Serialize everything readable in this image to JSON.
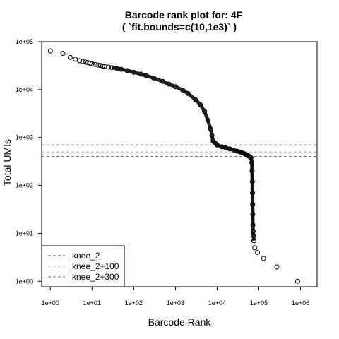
{
  "chart_data": {
    "type": "scatter",
    "title": "Barcode rank plot for: 4F",
    "subtitle": "( `fit.bounds=c(10,1e3)` )",
    "xlabel": "Barcode Rank",
    "ylabel": "Total UMIs",
    "x_scale": "log",
    "y_scale": "log",
    "xlim": [
      0.62,
      2500000
    ],
    "ylim": [
      0.77,
      100000
    ],
    "x_ticks": [
      1,
      10,
      100,
      1000,
      10000,
      100000,
      1000000
    ],
    "x_tick_labels": [
      "1e+00",
      "1e+01",
      "1e+02",
      "1e+03",
      "1e+04",
      "1e+05",
      "1e+06"
    ],
    "y_ticks": [
      1,
      10,
      100,
      1000,
      10000,
      100000
    ],
    "y_tick_labels": [
      "1e+00",
      "1e+01",
      "1e+02",
      "1e+03",
      "1e+04",
      "1e+05"
    ],
    "grid": false,
    "legend_position": "bottom-left",
    "series": [
      {
        "kind": "points",
        "color": "#000000",
        "points": [
          [
            1,
            64000
          ],
          [
            2,
            57000
          ],
          [
            3,
            47000
          ],
          [
            4,
            43000
          ],
          [
            5,
            40000
          ],
          [
            6,
            38500
          ],
          [
            7,
            37500
          ],
          [
            8,
            36500
          ],
          [
            9,
            35500
          ],
          [
            10,
            34500
          ],
          [
            12,
            33500
          ],
          [
            14,
            32500
          ],
          [
            16,
            31800
          ],
          [
            18,
            31000
          ],
          [
            20,
            30500
          ],
          [
            25,
            29500
          ],
          [
            30,
            28800
          ],
          [
            40,
            27500
          ],
          [
            50,
            26500
          ],
          [
            70,
            25000
          ],
          [
            100,
            23000
          ],
          [
            150,
            21000
          ],
          [
            200,
            19500
          ],
          [
            300,
            17500
          ],
          [
            500,
            14800
          ],
          [
            700,
            13000
          ],
          [
            1000,
            11500
          ],
          [
            1500,
            9800
          ],
          [
            2000,
            8300
          ],
          [
            3000,
            6200
          ],
          [
            4000,
            4800
          ],
          [
            5000,
            3500
          ],
          [
            6000,
            2300
          ],
          [
            7000,
            1500
          ],
          [
            7500,
            1100
          ],
          [
            8000,
            850
          ],
          [
            9000,
            760
          ],
          [
            10000,
            700
          ],
          [
            13000,
            640
          ],
          [
            16000,
            610
          ],
          [
            20000,
            580
          ],
          [
            25000,
            550
          ],
          [
            30000,
            520
          ],
          [
            35000,
            500
          ],
          [
            40000,
            480
          ],
          [
            45000,
            460
          ],
          [
            50000,
            440
          ],
          [
            55000,
            420
          ],
          [
            60000,
            400
          ],
          [
            65000,
            380
          ],
          [
            68000,
            300
          ],
          [
            69000,
            200
          ],
          [
            70000,
            120
          ],
          [
            70500,
            70
          ],
          [
            71000,
            40
          ],
          [
            71500,
            25
          ],
          [
            72000,
            15
          ],
          [
            73000,
            11
          ],
          [
            74000,
            9
          ],
          [
            76000,
            7
          ],
          [
            80000,
            5
          ],
          [
            93000,
            4
          ],
          [
            130000,
            3
          ],
          [
            270000,
            2
          ],
          [
            850000,
            1
          ]
        ]
      },
      {
        "kind": "fit-line",
        "color": "#b22222",
        "points": [
          [
            10000,
            700
          ],
          [
            20000,
            580
          ],
          [
            40000,
            480
          ],
          [
            60000,
            400
          ],
          [
            66000,
            370
          ],
          [
            68000,
            300
          ],
          [
            69000,
            200
          ],
          [
            70000,
            120
          ],
          [
            71000,
            40
          ],
          [
            72000,
            15
          ]
        ]
      }
    ],
    "hlines": [
      {
        "name": "knee_2",
        "y": 400,
        "color": "#5e3c99"
      },
      {
        "name": "knee_2+100",
        "y": 500,
        "color": "#66c2c2"
      },
      {
        "name": "knee_2+300",
        "y": 700,
        "color": "#33a02c"
      }
    ]
  }
}
